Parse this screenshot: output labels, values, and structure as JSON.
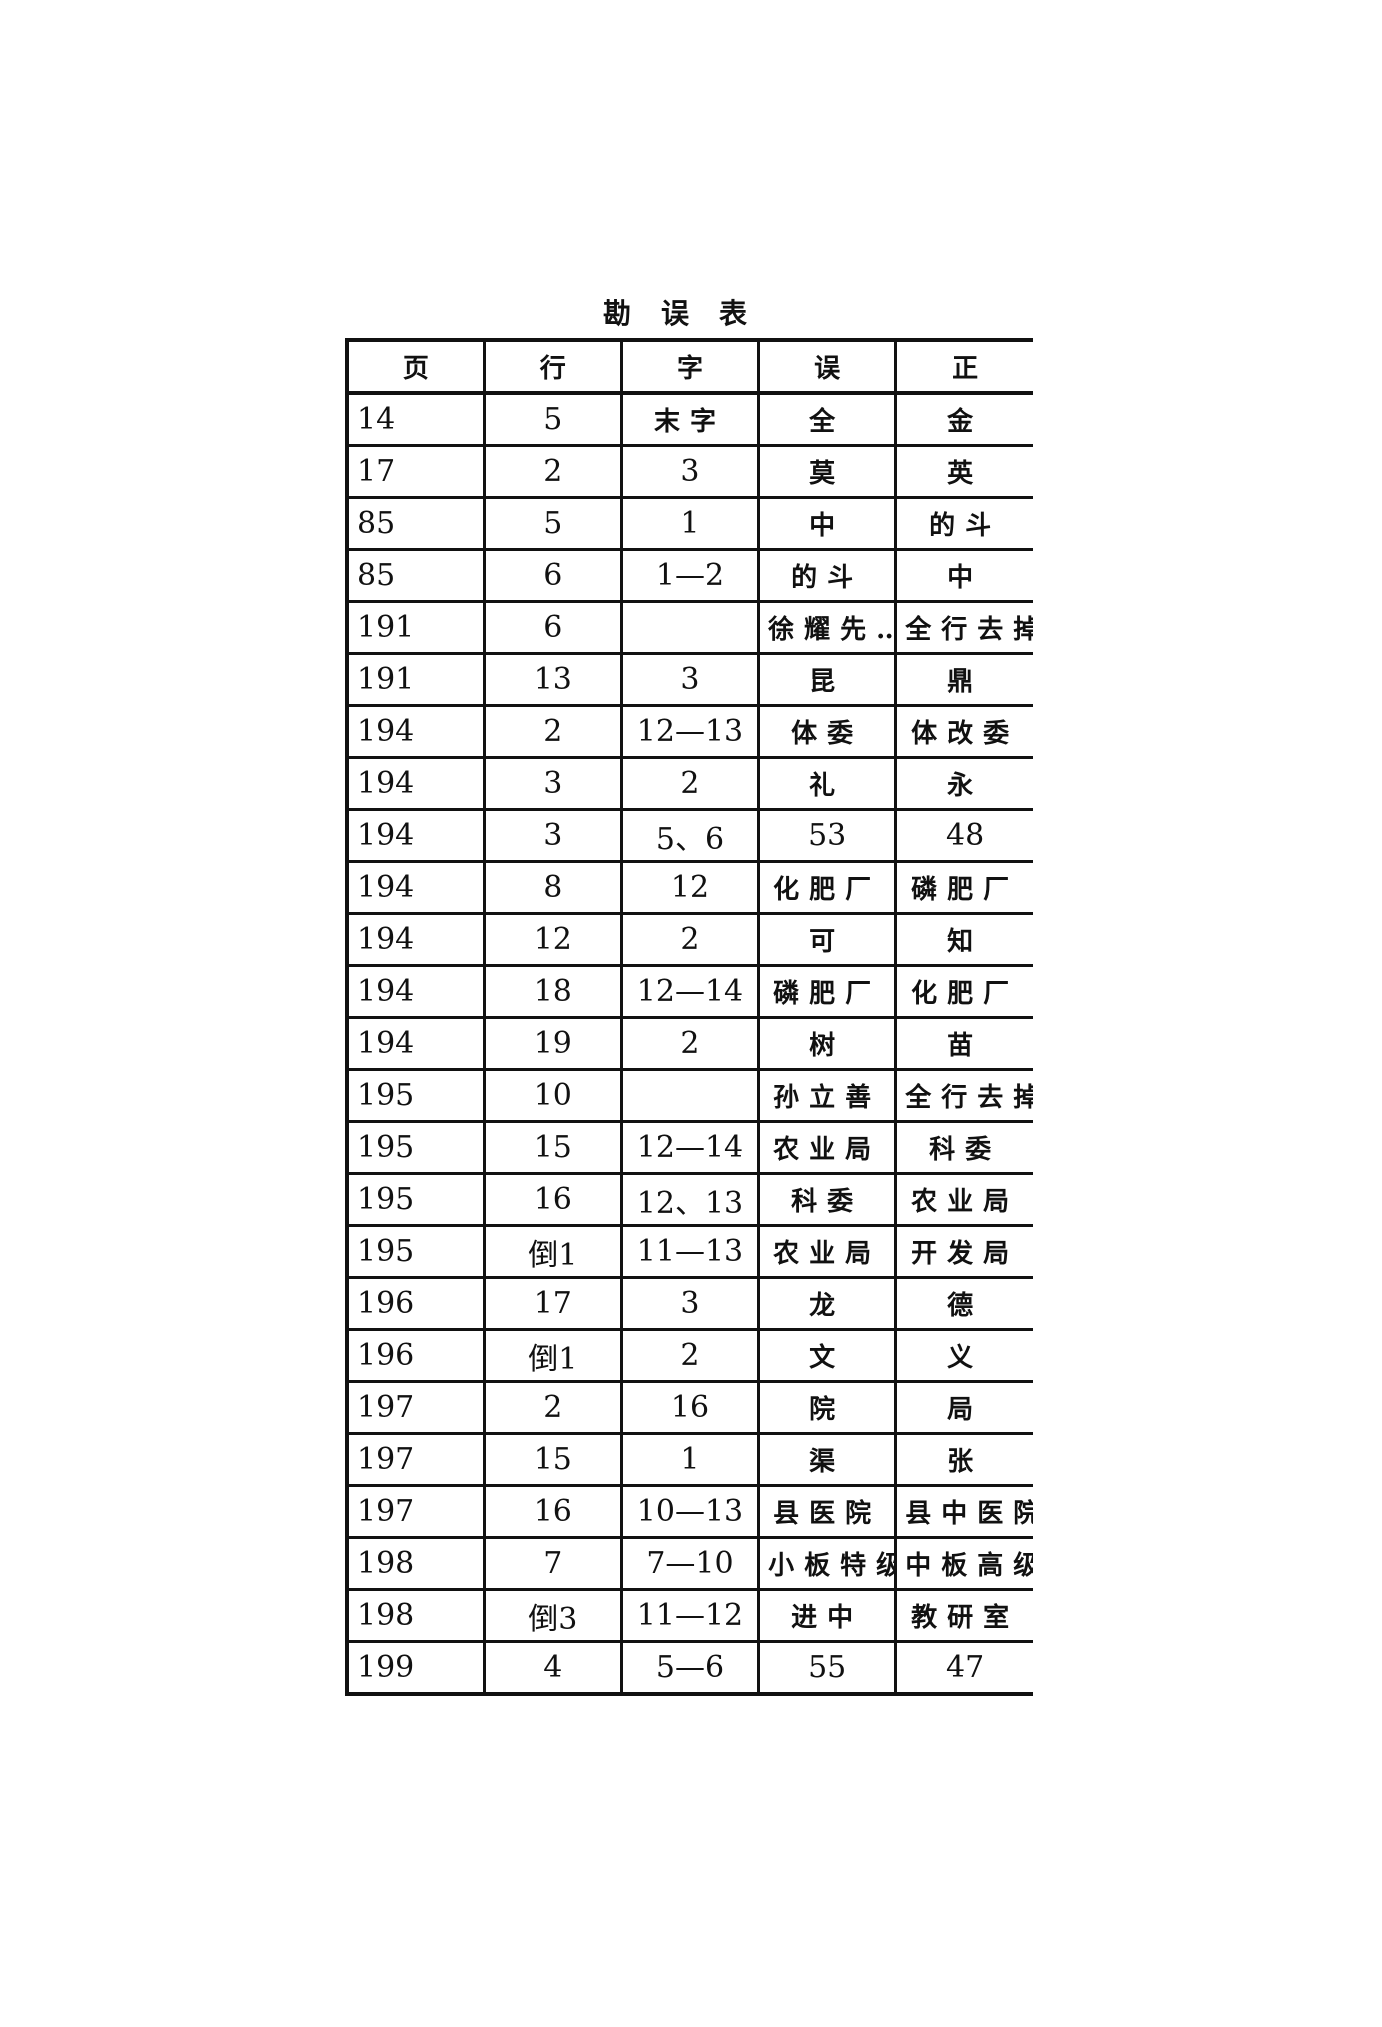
{
  "title": "勘误表",
  "headers": [
    "页",
    "行",
    "字",
    "误",
    "正"
  ],
  "rows": [
    [
      "14",
      "5",
      "末字",
      "全",
      "金"
    ],
    [
      "17",
      "2",
      "3",
      "莫",
      "英"
    ],
    [
      "85",
      "5",
      "1",
      "中",
      "的斗"
    ],
    [
      "85",
      "6",
      "1—2",
      "的斗",
      "中"
    ],
    [
      "191",
      "6",
      "",
      "徐耀先…",
      "全行去掉"
    ],
    [
      "191",
      "13",
      "3",
      "昆",
      "鼎"
    ],
    [
      "194",
      "2",
      "12—13",
      "体委",
      "体改委"
    ],
    [
      "194",
      "3",
      "2",
      "礼",
      "永"
    ],
    [
      "194",
      "3",
      "5、6",
      "53",
      "48"
    ],
    [
      "194",
      "8",
      "12",
      "化肥厂",
      "磷肥厂"
    ],
    [
      "194",
      "12",
      "2",
      "可",
      "知"
    ],
    [
      "194",
      "18",
      "12—14",
      "磷肥厂",
      "化肥厂"
    ],
    [
      "194",
      "19",
      "2",
      "树",
      "苗"
    ],
    [
      "195",
      "10",
      "",
      "孙立善",
      "全行去掉"
    ],
    [
      "195",
      "15",
      "12—14",
      "农业局",
      "科委"
    ],
    [
      "195",
      "16",
      "12、13",
      "科委",
      "农业局"
    ],
    [
      "195",
      "倒1",
      "11—13",
      "农业局",
      "开发局"
    ],
    [
      "196",
      "17",
      "3",
      "龙",
      "德"
    ],
    [
      "196",
      "倒1",
      "2",
      "文",
      "义"
    ],
    [
      "197",
      "2",
      "16",
      "院",
      "局"
    ],
    [
      "197",
      "15",
      "1",
      "渠",
      "张"
    ],
    [
      "197",
      "16",
      "10—13",
      "县医院",
      "县中医院"
    ],
    [
      "198",
      "7",
      "7—10",
      "小板特级",
      "中板高级"
    ],
    [
      "198",
      "倒3",
      "11—12",
      "进中",
      "教研室"
    ],
    [
      "199",
      "4",
      "5—6",
      "55",
      "47"
    ]
  ]
}
